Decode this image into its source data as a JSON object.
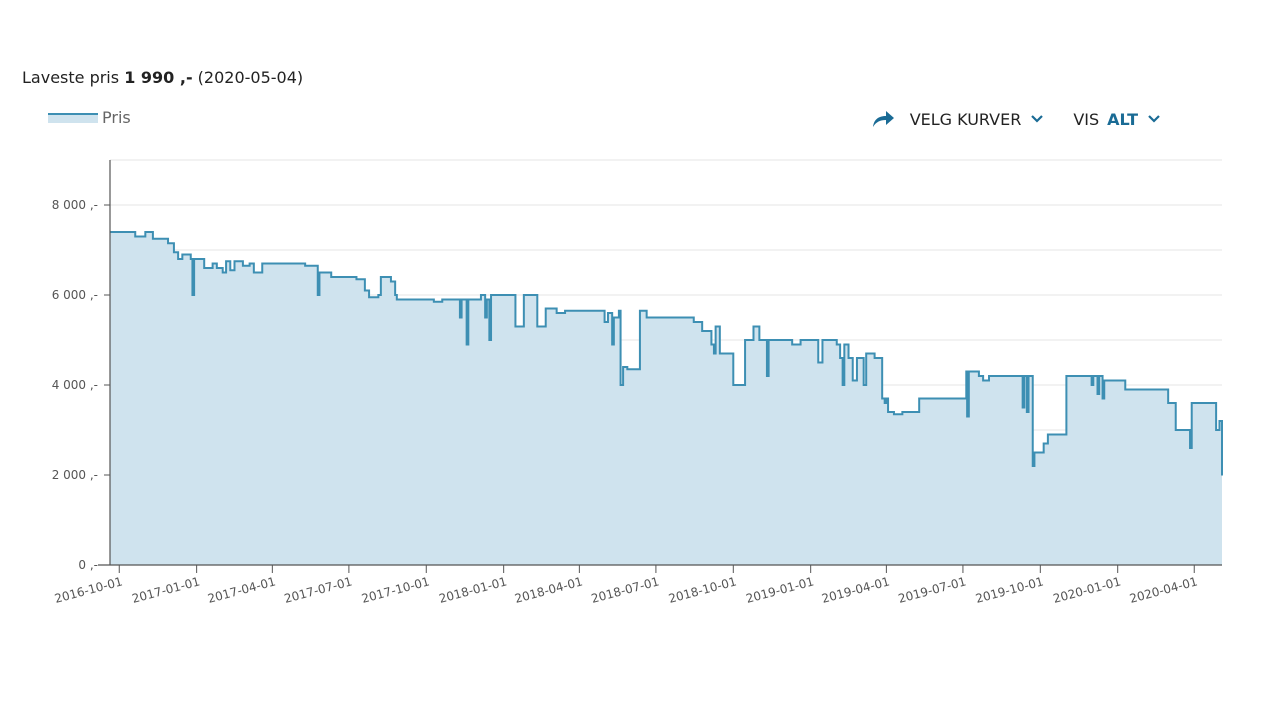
{
  "header": {
    "lowest_label": "Laveste pris",
    "lowest_value": "1 990 ,-",
    "lowest_date": "(2020-05-04)"
  },
  "legend": {
    "series_label": "Pris"
  },
  "controls": {
    "select_curves_label": "VELG KURVER",
    "show_label": "VIS",
    "show_value": "ALT"
  },
  "colors": {
    "line": "#3d8fb3",
    "fill": "#cfe3ee",
    "accent": "#1a6b95",
    "grid": "#e6e6e6",
    "axis": "#555555"
  },
  "icons": {
    "share": "share-arrow-icon",
    "chevron": "chevron-down-icon"
  },
  "chart_data": {
    "type": "area",
    "title": "",
    "xlabel": "",
    "ylabel": "",
    "ylim": [
      0,
      9000
    ],
    "y_ticks": [
      {
        "value": 0,
        "label": "0 ,-"
      },
      {
        "value": 2000,
        "label": "2 000 ,-"
      },
      {
        "value": 4000,
        "label": "4 000 ,-"
      },
      {
        "value": 6000,
        "label": "6 000 ,-"
      },
      {
        "value": 8000,
        "label": "8 000 ,-"
      }
    ],
    "x_range": [
      "2016-09-20",
      "2020-05-04"
    ],
    "x_ticks": [
      "2016-10-01",
      "2017-01-01",
      "2017-04-01",
      "2017-07-01",
      "2017-10-01",
      "2018-01-01",
      "2018-04-01",
      "2018-07-01",
      "2018-10-01",
      "2019-01-01",
      "2019-04-01",
      "2019-07-01",
      "2019-10-01",
      "2020-01-01",
      "2020-04-01"
    ],
    "grid": true,
    "series": [
      {
        "name": "Pris",
        "step": true,
        "points": [
          [
            "2016-09-20",
            7400
          ],
          [
            "2016-10-20",
            7300
          ],
          [
            "2016-11-01",
            7400
          ],
          [
            "2016-11-10",
            7250
          ],
          [
            "2016-11-28",
            7150
          ],
          [
            "2016-12-05",
            6950
          ],
          [
            "2016-12-10",
            6800
          ],
          [
            "2016-12-15",
            6900
          ],
          [
            "2016-12-25",
            6800
          ],
          [
            "2016-12-27",
            6000
          ],
          [
            "2016-12-29",
            6800
          ],
          [
            "2017-01-10",
            6600
          ],
          [
            "2017-01-20",
            6700
          ],
          [
            "2017-01-25",
            6600
          ],
          [
            "2017-02-01",
            6500
          ],
          [
            "2017-02-05",
            6750
          ],
          [
            "2017-02-10",
            6550
          ],
          [
            "2017-02-15",
            6750
          ],
          [
            "2017-02-25",
            6650
          ],
          [
            "2017-03-05",
            6700
          ],
          [
            "2017-03-10",
            6500
          ],
          [
            "2017-03-20",
            6700
          ],
          [
            "2017-04-05",
            6700
          ],
          [
            "2017-05-10",
            6650
          ],
          [
            "2017-05-25",
            6000
          ],
          [
            "2017-05-27",
            6500
          ],
          [
            "2017-06-10",
            6400
          ],
          [
            "2017-07-10",
            6350
          ],
          [
            "2017-07-20",
            6100
          ],
          [
            "2017-07-25",
            5950
          ],
          [
            "2017-08-05",
            6000
          ],
          [
            "2017-08-08",
            6400
          ],
          [
            "2017-08-20",
            6300
          ],
          [
            "2017-08-25",
            6000
          ],
          [
            "2017-08-27",
            5900
          ],
          [
            "2017-10-01",
            5900
          ],
          [
            "2017-10-10",
            5850
          ],
          [
            "2017-10-20",
            5900
          ],
          [
            "2017-11-05",
            5900
          ],
          [
            "2017-11-10",
            5500
          ],
          [
            "2017-11-12",
            5900
          ],
          [
            "2017-11-18",
            4900
          ],
          [
            "2017-11-20",
            5900
          ],
          [
            "2017-12-05",
            6000
          ],
          [
            "2017-12-10",
            5500
          ],
          [
            "2017-12-12",
            5900
          ],
          [
            "2017-12-15",
            5000
          ],
          [
            "2017-12-17",
            6000
          ],
          [
            "2018-01-15",
            5300
          ],
          [
            "2018-01-25",
            6000
          ],
          [
            "2018-02-10",
            5300
          ],
          [
            "2018-02-20",
            5700
          ],
          [
            "2018-03-05",
            5600
          ],
          [
            "2018-03-15",
            5650
          ],
          [
            "2018-04-10",
            5650
          ],
          [
            "2018-05-01",
            5400
          ],
          [
            "2018-05-05",
            5600
          ],
          [
            "2018-05-10",
            4900
          ],
          [
            "2018-05-12",
            5500
          ],
          [
            "2018-05-18",
            5650
          ],
          [
            "2018-05-20",
            4000
          ],
          [
            "2018-05-23",
            4400
          ],
          [
            "2018-05-28",
            4350
          ],
          [
            "2018-06-12",
            5650
          ],
          [
            "2018-06-20",
            5500
          ],
          [
            "2018-08-15",
            5400
          ],
          [
            "2018-08-25",
            5200
          ],
          [
            "2018-09-05",
            4900
          ],
          [
            "2018-09-08",
            4700
          ],
          [
            "2018-09-10",
            5300
          ],
          [
            "2018-09-15",
            4700
          ],
          [
            "2018-10-01",
            4000
          ],
          [
            "2018-10-15",
            5000
          ],
          [
            "2018-10-25",
            5300
          ],
          [
            "2018-11-01",
            5000
          ],
          [
            "2018-11-10",
            4200
          ],
          [
            "2018-11-12",
            5000
          ],
          [
            "2018-12-10",
            4900
          ],
          [
            "2018-12-20",
            5000
          ],
          [
            "2019-01-10",
            4500
          ],
          [
            "2019-01-15",
            5000
          ],
          [
            "2019-02-01",
            4900
          ],
          [
            "2019-02-05",
            4600
          ],
          [
            "2019-02-08",
            4000
          ],
          [
            "2019-02-10",
            4900
          ],
          [
            "2019-02-15",
            4600
          ],
          [
            "2019-02-20",
            4100
          ],
          [
            "2019-02-25",
            4600
          ],
          [
            "2019-03-05",
            4000
          ],
          [
            "2019-03-08",
            4700
          ],
          [
            "2019-03-18",
            4600
          ],
          [
            "2019-03-27",
            3700
          ],
          [
            "2019-03-30",
            3600
          ],
          [
            "2019-04-01",
            3700
          ],
          [
            "2019-04-03",
            3400
          ],
          [
            "2019-04-10",
            3350
          ],
          [
            "2019-04-20",
            3400
          ],
          [
            "2019-05-10",
            3700
          ],
          [
            "2019-07-05",
            4300
          ],
          [
            "2019-07-06",
            3300
          ],
          [
            "2019-07-08",
            4300
          ],
          [
            "2019-07-20",
            4200
          ],
          [
            "2019-07-25",
            4100
          ],
          [
            "2019-08-01",
            4200
          ],
          [
            "2019-09-10",
            3500
          ],
          [
            "2019-09-12",
            4200
          ],
          [
            "2019-09-15",
            3400
          ],
          [
            "2019-09-17",
            4200
          ],
          [
            "2019-09-22",
            2200
          ],
          [
            "2019-09-24",
            2500
          ],
          [
            "2019-10-05",
            2700
          ],
          [
            "2019-10-10",
            2900
          ],
          [
            "2019-11-01",
            4200
          ],
          [
            "2019-12-01",
            4000
          ],
          [
            "2019-12-03",
            4200
          ],
          [
            "2019-12-08",
            3800
          ],
          [
            "2019-12-10",
            4200
          ],
          [
            "2019-12-14",
            3700
          ],
          [
            "2019-12-16",
            4100
          ],
          [
            "2020-01-10",
            3900
          ],
          [
            "2020-03-01",
            3600
          ],
          [
            "2020-03-10",
            3000
          ],
          [
            "2020-03-27",
            2600
          ],
          [
            "2020-03-29",
            3600
          ],
          [
            "2020-04-27",
            3000
          ],
          [
            "2020-05-01",
            3200
          ],
          [
            "2020-05-04",
            1990
          ]
        ]
      }
    ]
  }
}
